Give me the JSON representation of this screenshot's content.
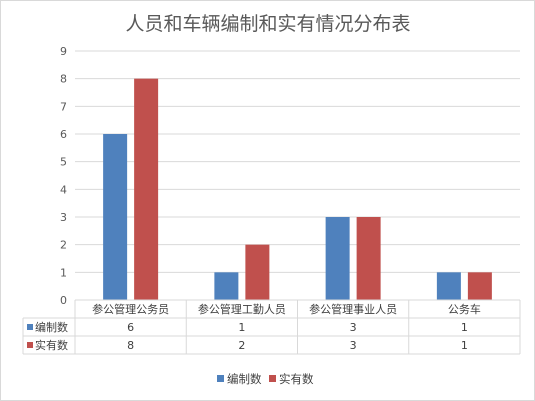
{
  "chart_data": {
    "type": "bar",
    "title": "人员和车辆编制和实有情况分布表",
    "categories": [
      "参公管理公务员",
      "参公管理工勤人员",
      "参公管理事业人员",
      "公务车"
    ],
    "series": [
      {
        "name": "编制数",
        "values": [
          6,
          1,
          3,
          1
        ],
        "color": "#4f81bd"
      },
      {
        "name": "实有数",
        "values": [
          8,
          2,
          3,
          1
        ],
        "color": "#c0504d"
      }
    ],
    "ylim": [
      0,
      9
    ],
    "yticks": [
      0,
      1,
      2,
      3,
      4,
      5,
      6,
      7,
      8,
      9
    ],
    "grid": true,
    "data_table": true,
    "legend": "bottom"
  }
}
